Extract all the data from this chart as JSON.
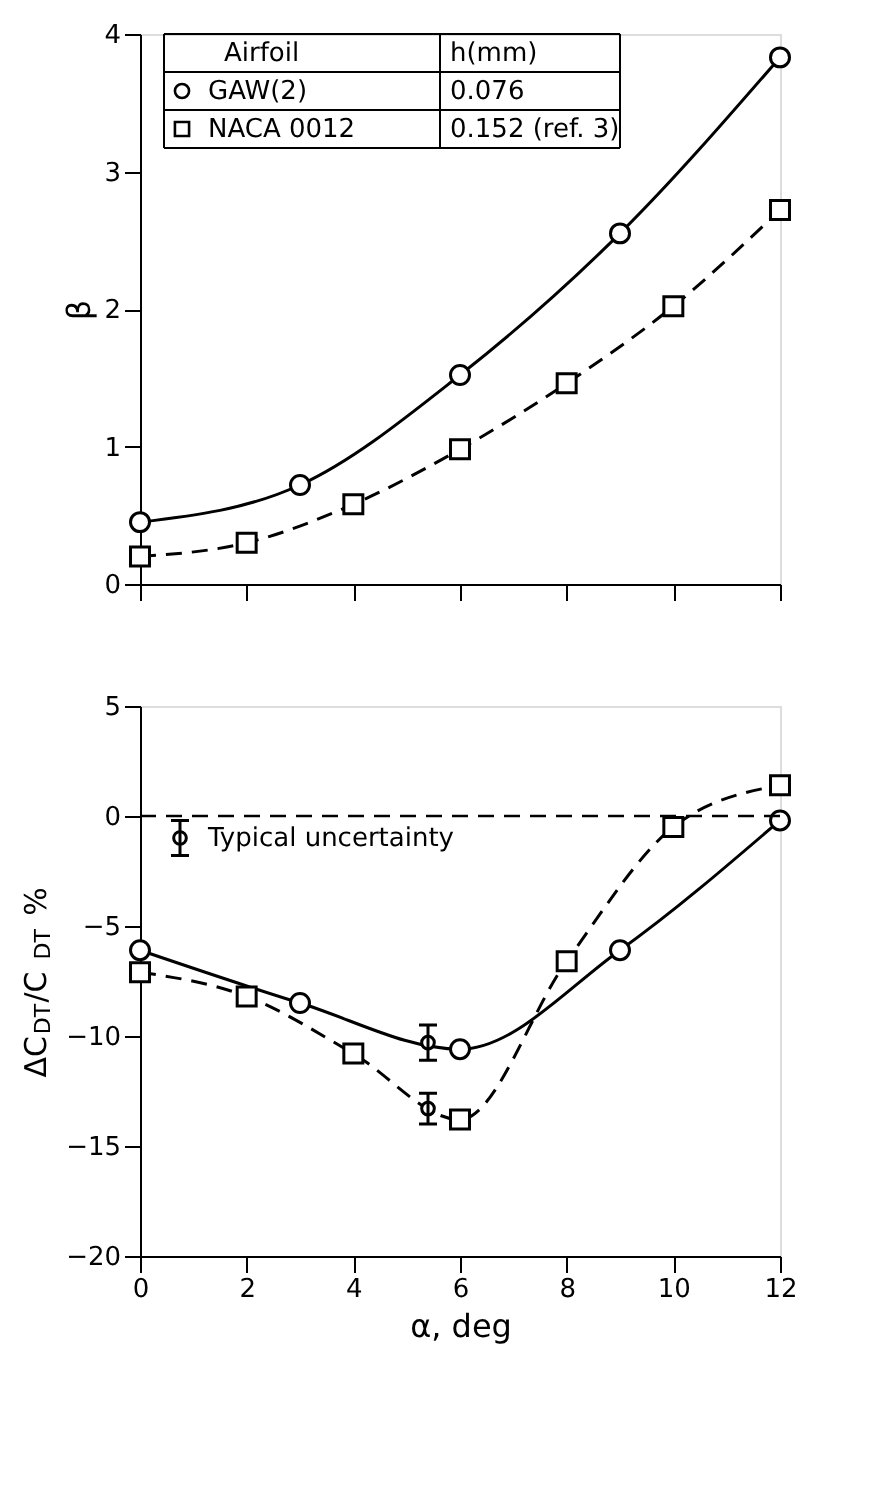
{
  "chart_data": [
    {
      "type": "line",
      "ylabel": "β",
      "legend_title": "Airfoil",
      "legend": "top",
      "annotations": [
        "h(mm)",
        "0.076",
        "0.152 (ref. 3)"
      ],
      "xlim": [
        0,
        12
      ],
      "xticks": [
        {
          "value": 0,
          "label": null
        },
        {
          "value": 2,
          "label": null
        },
        {
          "value": 4,
          "label": null
        },
        {
          "value": 6,
          "label": null
        },
        {
          "value": 8,
          "label": null
        },
        {
          "value": 10,
          "label": null
        },
        {
          "value": 12,
          "label": null
        }
      ],
      "ylim": [
        0,
        4
      ],
      "yticks": [
        0,
        1,
        2,
        3,
        4
      ],
      "tick_labels": "y",
      "grid": false,
      "series": [
        {
          "name": "GAW(2)",
          "color": "#000000",
          "marker": "circle",
          "line_style": "solid",
          "x": [
            0,
            3,
            6,
            9,
            12
          ],
          "values": [
            0.45,
            0.72,
            1.52,
            2.55,
            3.83
          ]
        },
        {
          "name": "NACA 0012",
          "color": "#000000",
          "marker": "square",
          "line_style": "dashed",
          "x": [
            0,
            2,
            4,
            6,
            8,
            10,
            12
          ],
          "values": [
            0.2,
            0.3,
            0.58,
            0.98,
            1.46,
            2.02,
            2.72
          ]
        }
      ]
    },
    {
      "type": "line",
      "ylabel": "ΔC$_{DT}$/C$_{DT}$ %",
      "xlabel": "α, deg",
      "xlim": [
        0,
        12
      ],
      "xticks": [
        0,
        2,
        4,
        6,
        8,
        10,
        12
      ],
      "ylim": [
        -20,
        5
      ],
      "yticks": [
        -20,
        -15,
        -10,
        -5,
        0,
        5
      ],
      "grid": false,
      "ref_lines": [
        {
          "axis": "y",
          "value": 0,
          "color": "#000000",
          "line_style": "dashed"
        }
      ],
      "series": [
        {
          "color": "#000000",
          "marker": "circle",
          "line_style": "solid",
          "x": [
            0,
            3,
            6,
            9,
            12
          ],
          "values": [
            -6.1,
            -8.5,
            -10.6,
            -6.1,
            -0.2
          ]
        },
        {
          "color": "#000000",
          "marker": "square",
          "line_style": "dashed",
          "x": [
            0,
            2,
            4,
            6,
            8,
            10,
            12
          ],
          "values": [
            -7.1,
            -8.2,
            -10.8,
            -13.8,
            -6.6,
            -0.5,
            1.4
          ]
        },
        {
          "type": "scatter",
          "name": "Typical uncertainty",
          "color": "#000000",
          "marker": "circle",
          "x": [
            0.75,
            5.4,
            5.4
          ],
          "values": [
            -1.0,
            -10.3,
            -13.3
          ],
          "errors": [
            [
              -1.8,
              -0.2
            ],
            [
              -11.1,
              -9.5
            ],
            [
              -14.0,
              -12.6
            ]
          ]
        }
      ]
    }
  ]
}
